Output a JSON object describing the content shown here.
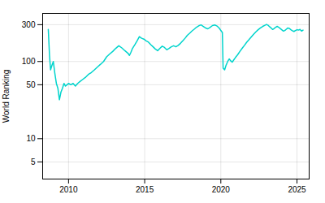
{
  "chart_data": {
    "type": "line",
    "ylabel": "World Ranking",
    "color": "#00d4cc",
    "log": "y",
    "grid": true,
    "xlim": [
      2008.3,
      2025.8
    ],
    "ylim": [
      3,
      420
    ],
    "xticks": [
      2010,
      2015,
      2020,
      2025
    ],
    "yticks": [
      5,
      10,
      50,
      100,
      300
    ],
    "x": [
      2008.67,
      2008.75,
      2008.82,
      2008.9,
      2009.0,
      2009.1,
      2009.2,
      2009.3,
      2009.4,
      2009.5,
      2009.6,
      2009.7,
      2009.8,
      2009.9,
      2010.0,
      2010.15,
      2010.3,
      2010.45,
      2010.6,
      2010.75,
      2010.9,
      2011.1,
      2011.3,
      2011.5,
      2011.7,
      2011.9,
      2012.1,
      2012.3,
      2012.5,
      2012.7,
      2012.9,
      2013.1,
      2013.3,
      2013.5,
      2013.7,
      2013.9,
      2014.0,
      2014.1,
      2014.2,
      2014.35,
      2014.5,
      2014.65,
      2014.8,
      2014.95,
      2015.1,
      2015.25,
      2015.4,
      2015.55,
      2015.7,
      2015.85,
      2016.0,
      2016.15,
      2016.3,
      2016.45,
      2016.6,
      2016.75,
      2016.9,
      2017.05,
      2017.2,
      2017.35,
      2017.5,
      2017.65,
      2017.8,
      2017.95,
      2018.1,
      2018.25,
      2018.4,
      2018.55,
      2018.7,
      2018.85,
      2019.0,
      2019.15,
      2019.3,
      2019.45,
      2019.6,
      2019.75,
      2019.9,
      2020.0,
      2020.1,
      2020.15,
      2020.25,
      2020.35,
      2020.45,
      2020.55,
      2020.65,
      2020.75,
      2020.85,
      2020.95,
      2021.1,
      2021.25,
      2021.4,
      2021.55,
      2021.7,
      2021.85,
      2022.0,
      2022.15,
      2022.3,
      2022.45,
      2022.6,
      2022.75,
      2022.9,
      2023.0,
      2023.1,
      2023.2,
      2023.3,
      2023.4,
      2023.5,
      2023.6,
      2023.7,
      2023.8,
      2023.9,
      2024.0,
      2024.1,
      2024.2,
      2024.3,
      2024.4,
      2024.5,
      2024.6,
      2024.7,
      2024.8,
      2024.9,
      2025.0,
      2025.1,
      2025.2,
      2025.3,
      2025.4
    ],
    "values": [
      260,
      120,
      78,
      88,
      100,
      70,
      52,
      45,
      32,
      40,
      45,
      52,
      48,
      50,
      52,
      50,
      52,
      48,
      52,
      55,
      58,
      62,
      68,
      72,
      78,
      85,
      92,
      100,
      115,
      125,
      135,
      148,
      160,
      150,
      138,
      128,
      120,
      132,
      148,
      165,
      185,
      210,
      200,
      195,
      185,
      178,
      165,
      155,
      145,
      138,
      148,
      158,
      152,
      142,
      148,
      155,
      160,
      155,
      162,
      172,
      185,
      200,
      218,
      232,
      248,
      262,
      278,
      290,
      298,
      285,
      272,
      265,
      278,
      292,
      298,
      288,
      270,
      252,
      238,
      82,
      78,
      90,
      100,
      108,
      102,
      98,
      105,
      112,
      122,
      135,
      148,
      162,
      178,
      192,
      208,
      225,
      242,
      258,
      272,
      285,
      295,
      302,
      295,
      282,
      272,
      260,
      268,
      278,
      285,
      278,
      268,
      258,
      248,
      252,
      262,
      272,
      268,
      258,
      250,
      245,
      252,
      258,
      255,
      260,
      248,
      255
    ]
  }
}
